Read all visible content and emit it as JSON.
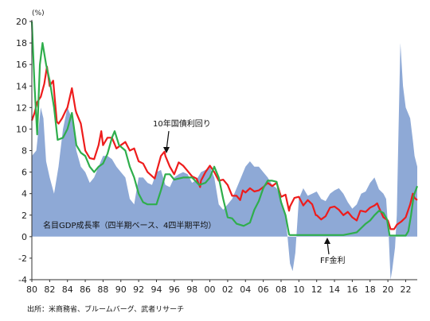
{
  "chart_data": {
    "type": "area",
    "y_unit": "(%)",
    "ylim": [
      -4,
      20
    ],
    "y_ticks": [
      "-4",
      "-2",
      "0",
      "2",
      "4",
      "6",
      "8",
      "10",
      "12",
      "14",
      "16",
      "18",
      "20"
    ],
    "x_tick_labels": [
      "80",
      "82",
      "84",
      "86",
      "88",
      "90",
      "92",
      "94",
      "96",
      "98",
      "00",
      "02",
      "04",
      "06",
      "08",
      "10",
      "12",
      "14",
      "16",
      "18",
      "20",
      "22"
    ],
    "x_range": [
      1980,
      2023.3
    ],
    "grid": false,
    "colors": {
      "area": "#8ea9d6",
      "yield": "#ee1c1c",
      "ff": "#2fae4c",
      "axis": "#333333"
    },
    "series": [
      {
        "name": "名目GDP成長率（四半期ベース、4四半期平均）",
        "style": "area",
        "points": [
          [
            1980,
            7.5
          ],
          [
            1980.5,
            8
          ],
          [
            1981,
            12
          ],
          [
            1981.3,
            11
          ],
          [
            1981.6,
            7
          ],
          [
            1982,
            5.5
          ],
          [
            1982.5,
            4
          ],
          [
            1983,
            6.5
          ],
          [
            1983.5,
            10
          ],
          [
            1984,
            12
          ],
          [
            1984.5,
            11
          ],
          [
            1985,
            8
          ],
          [
            1985.5,
            6.5
          ],
          [
            1986,
            6
          ],
          [
            1986.5,
            5
          ],
          [
            1987,
            5.5
          ],
          [
            1987.5,
            6.5
          ],
          [
            1988,
            7.5
          ],
          [
            1988.5,
            7.5
          ],
          [
            1989,
            7.2
          ],
          [
            1989.5,
            6.5
          ],
          [
            1990,
            6
          ],
          [
            1990.5,
            5.5
          ],
          [
            1991,
            3.5
          ],
          [
            1991.5,
            3
          ],
          [
            1992,
            5.5
          ],
          [
            1992.5,
            5.5
          ],
          [
            1993,
            5
          ],
          [
            1993.5,
            4.8
          ],
          [
            1994,
            6
          ],
          [
            1994.5,
            6.2
          ],
          [
            1995,
            4.8
          ],
          [
            1995.5,
            4.6
          ],
          [
            1996,
            5.5
          ],
          [
            1996.5,
            5.8
          ],
          [
            1997,
            6
          ],
          [
            1997.5,
            5.8
          ],
          [
            1998,
            5
          ],
          [
            1998.5,
            5.3
          ],
          [
            1999,
            6
          ],
          [
            1999.5,
            6.2
          ],
          [
            2000,
            6.5
          ],
          [
            2000.5,
            5.5
          ],
          [
            2001,
            3
          ],
          [
            2001.5,
            2.5
          ],
          [
            2002,
            3
          ],
          [
            2002.5,
            3.5
          ],
          [
            2003,
            4.5
          ],
          [
            2003.5,
            5.5
          ],
          [
            2004,
            6.5
          ],
          [
            2004.5,
            7
          ],
          [
            2005,
            6.5
          ],
          [
            2005.5,
            6.5
          ],
          [
            2006,
            6
          ],
          [
            2006.5,
            5.5
          ],
          [
            2007,
            4.8
          ],
          [
            2007.5,
            4.5
          ],
          [
            2008,
            3.5
          ],
          [
            2008.5,
            2
          ],
          [
            2009,
            -2.5
          ],
          [
            2009.3,
            -3.2
          ],
          [
            2009.6,
            -1.5
          ],
          [
            2010,
            3.5
          ],
          [
            2010.5,
            4.5
          ],
          [
            2011,
            3.8
          ],
          [
            2011.5,
            4
          ],
          [
            2012,
            4.2
          ],
          [
            2012.5,
            3.5
          ],
          [
            2013,
            3.3
          ],
          [
            2013.5,
            4
          ],
          [
            2014,
            4.3
          ],
          [
            2014.5,
            4.5
          ],
          [
            2015,
            4
          ],
          [
            2015.5,
            3.2
          ],
          [
            2016,
            2.6
          ],
          [
            2016.5,
            3
          ],
          [
            2017,
            4
          ],
          [
            2017.5,
            4.2
          ],
          [
            2018,
            5
          ],
          [
            2018.5,
            5.5
          ],
          [
            2019,
            4.4
          ],
          [
            2019.5,
            4
          ],
          [
            2019.8,
            3.5
          ],
          [
            2020.1,
            0
          ],
          [
            2020.3,
            -4
          ],
          [
            2020.5,
            -3
          ],
          [
            2020.8,
            -1
          ],
          [
            2021,
            2
          ],
          [
            2021.2,
            10
          ],
          [
            2021.4,
            18
          ],
          [
            2021.7,
            14
          ],
          [
            2022,
            12
          ],
          [
            2022.5,
            11
          ],
          [
            2022.8,
            9
          ],
          [
            2023,
            7.5
          ],
          [
            2023.3,
            6.5
          ]
        ]
      },
      {
        "name": "10年国債利回り",
        "style": "line",
        "points": [
          [
            1980,
            10.8
          ],
          [
            1980.3,
            11.5
          ],
          [
            1980.6,
            12.5
          ],
          [
            1981,
            13
          ],
          [
            1981.4,
            14.2
          ],
          [
            1981.7,
            15.8
          ],
          [
            1982,
            14
          ],
          [
            1982.4,
            14.5
          ],
          [
            1982.8,
            10.7
          ],
          [
            1983,
            10.5
          ],
          [
            1983.4,
            11
          ],
          [
            1983.8,
            11.7
          ],
          [
            1984,
            12
          ],
          [
            1984.5,
            13.8
          ],
          [
            1984.9,
            11.8
          ],
          [
            1985,
            11.5
          ],
          [
            1985.5,
            10.5
          ],
          [
            1986,
            8
          ],
          [
            1986.5,
            7.3
          ],
          [
            1987,
            7.2
          ],
          [
            1987.5,
            8.5
          ],
          [
            1987.8,
            9.8
          ],
          [
            1988,
            8.5
          ],
          [
            1988.5,
            9.2
          ],
          [
            1989,
            9.2
          ],
          [
            1989.5,
            8.2
          ],
          [
            1990,
            8.5
          ],
          [
            1990.5,
            8.8
          ],
          [
            1991,
            8
          ],
          [
            1991.5,
            8.2
          ],
          [
            1992,
            7
          ],
          [
            1992.5,
            6.8
          ],
          [
            1993,
            6
          ],
          [
            1993.8,
            5.4
          ],
          [
            1994,
            6
          ],
          [
            1994.5,
            7.5
          ],
          [
            1994.9,
            7.9
          ],
          [
            1995,
            7.5
          ],
          [
            1995.5,
            6.5
          ],
          [
            1996,
            5.8
          ],
          [
            1996.5,
            6.9
          ],
          [
            1997,
            6.6
          ],
          [
            1997.5,
            6.1
          ],
          [
            1998,
            5.6
          ],
          [
            1998.5,
            5.4
          ],
          [
            1998.9,
            4.6
          ],
          [
            1999,
            5.2
          ],
          [
            1999.5,
            6
          ],
          [
            2000,
            6.6
          ],
          [
            2000.5,
            6
          ],
          [
            2001,
            5.2
          ],
          [
            2001.5,
            5.3
          ],
          [
            2002,
            4.8
          ],
          [
            2002.5,
            3.8
          ],
          [
            2003,
            3.8
          ],
          [
            2003.4,
            3.4
          ],
          [
            2003.7,
            4.3
          ],
          [
            2004,
            4.1
          ],
          [
            2004.5,
            4.5
          ],
          [
            2005,
            4.2
          ],
          [
            2005.5,
            4.3
          ],
          [
            2006,
            4.6
          ],
          [
            2006.5,
            5
          ],
          [
            2007,
            4.7
          ],
          [
            2007.5,
            5
          ],
          [
            2008,
            3.7
          ],
          [
            2008.5,
            3.9
          ],
          [
            2008.9,
            2.4
          ],
          [
            2009,
            2.8
          ],
          [
            2009.5,
            3.6
          ],
          [
            2010,
            3.7
          ],
          [
            2010.5,
            2.9
          ],
          [
            2011,
            3.4
          ],
          [
            2011.5,
            3
          ],
          [
            2011.9,
            2
          ],
          [
            2012,
            2
          ],
          [
            2012.5,
            1.6
          ],
          [
            2013,
            1.9
          ],
          [
            2013.5,
            2.7
          ],
          [
            2014,
            2.8
          ],
          [
            2014.5,
            2.5
          ],
          [
            2015,
            2
          ],
          [
            2015.5,
            2.3
          ],
          [
            2016,
            1.8
          ],
          [
            2016.5,
            1.5
          ],
          [
            2016.9,
            2.4
          ],
          [
            2017,
            2.4
          ],
          [
            2017.5,
            2.3
          ],
          [
            2018,
            2.7
          ],
          [
            2018.5,
            2.9
          ],
          [
            2018.8,
            3.1
          ],
          [
            2019,
            2.7
          ],
          [
            2019.5,
            1.8
          ],
          [
            2020,
            1.5
          ],
          [
            2020.3,
            0.7
          ],
          [
            2020.7,
            0.7
          ],
          [
            2021,
            1.1
          ],
          [
            2021.5,
            1.4
          ],
          [
            2022,
            1.8
          ],
          [
            2022.5,
            3
          ],
          [
            2022.8,
            4
          ],
          [
            2023,
            3.6
          ],
          [
            2023.3,
            3.4
          ]
        ]
      },
      {
        "name": "FF金利",
        "style": "line",
        "points": [
          [
            1980,
            20
          ],
          [
            1980.3,
            14
          ],
          [
            1980.6,
            9.5
          ],
          [
            1980.9,
            16
          ],
          [
            1981.2,
            18
          ],
          [
            1981.6,
            16
          ],
          [
            1982,
            14.5
          ],
          [
            1982.5,
            12
          ],
          [
            1982.9,
            9
          ],
          [
            1983.5,
            9.2
          ],
          [
            1984,
            10
          ],
          [
            1984.5,
            11.5
          ],
          [
            1985,
            8.5
          ],
          [
            1985.5,
            7.8
          ],
          [
            1986,
            7.5
          ],
          [
            1986.5,
            6.5
          ],
          [
            1987,
            6
          ],
          [
            1987.5,
            6.5
          ],
          [
            1988,
            6.8
          ],
          [
            1988.5,
            7.7
          ],
          [
            1989,
            9.2
          ],
          [
            1989.3,
            9.8
          ],
          [
            1989.8,
            8.5
          ],
          [
            1990.5,
            8
          ],
          [
            1991,
            6.5
          ],
          [
            1991.5,
            5.5
          ],
          [
            1992,
            4
          ],
          [
            1992.5,
            3.2
          ],
          [
            1993,
            3
          ],
          [
            1994,
            3
          ],
          [
            1994.5,
            4.3
          ],
          [
            1995,
            5.8
          ],
          [
            1995.5,
            5.8
          ],
          [
            1996,
            5.3
          ],
          [
            1997,
            5.5
          ],
          [
            1998,
            5.5
          ],
          [
            1998.8,
            4.8
          ],
          [
            1999.5,
            5
          ],
          [
            2000,
            5.5
          ],
          [
            2000.5,
            6.5
          ],
          [
            2001,
            5.5
          ],
          [
            2001.5,
            3.5
          ],
          [
            2002,
            1.8
          ],
          [
            2002.5,
            1.7
          ],
          [
            2003,
            1.2
          ],
          [
            2003.8,
            1
          ],
          [
            2004.5,
            1.3
          ],
          [
            2005,
            2.5
          ],
          [
            2005.5,
            3.3
          ],
          [
            2006,
            4.5
          ],
          [
            2006.5,
            5.2
          ],
          [
            2007,
            5.2
          ],
          [
            2007.5,
            5.1
          ],
          [
            2008,
            3.2
          ],
          [
            2008.5,
            2
          ],
          [
            2008.9,
            0.2
          ],
          [
            2009,
            0.15
          ],
          [
            2015,
            0.15
          ],
          [
            2015.9,
            0.3
          ],
          [
            2016.5,
            0.4
          ],
          [
            2017,
            0.8
          ],
          [
            2017.5,
            1.2
          ],
          [
            2018,
            1.5
          ],
          [
            2018.5,
            2
          ],
          [
            2019,
            2.4
          ],
          [
            2019.5,
            2.2
          ],
          [
            2019.9,
            1.6
          ],
          [
            2020.2,
            0.1
          ],
          [
            2022,
            0.1
          ],
          [
            2022.3,
            0.5
          ],
          [
            2022.6,
            2
          ],
          [
            2022.9,
            3.8
          ],
          [
            2023.3,
            4.7
          ]
        ]
      }
    ],
    "annotations": {
      "yield_label": "10年国債利回り",
      "ff_label": "FF金利",
      "gdp_label": "名目GDP成長率（四半期ベース、4四半期平均）"
    },
    "source": "出所：米商務省、ブルームバーグ、武者リサーチ"
  }
}
